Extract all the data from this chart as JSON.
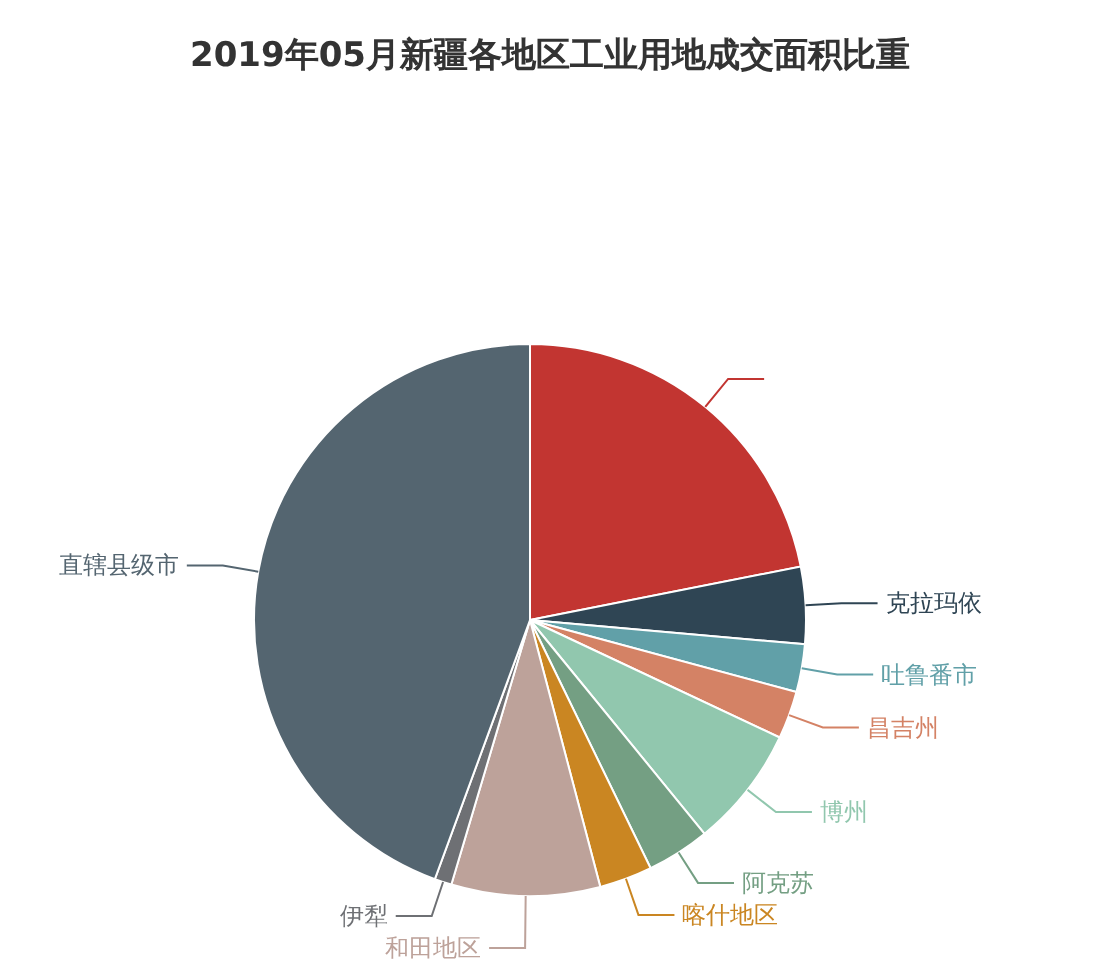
{
  "chart_data": {
    "type": "pie",
    "title": "2019年05月新疆各地区工业用地成交面积比重",
    "categories": [
      null,
      "克拉玛依",
      "吐鲁番市",
      "昌吉州",
      "博州",
      "阿克苏",
      "喀什地区",
      "和田地区",
      "伊犁",
      "直辖县级市"
    ],
    "values": [
      21.9,
      4.5,
      2.8,
      2.8,
      7.1,
      3.7,
      3.1,
      8.7,
      1.0,
      44.4
    ],
    "colors": [
      "#c23531",
      "#2f4554",
      "#61a0a8",
      "#d48265",
      "#91c7ae",
      "#749f83",
      "#ca8622",
      "#bda29a",
      "#6e7074",
      "#546570"
    ]
  }
}
